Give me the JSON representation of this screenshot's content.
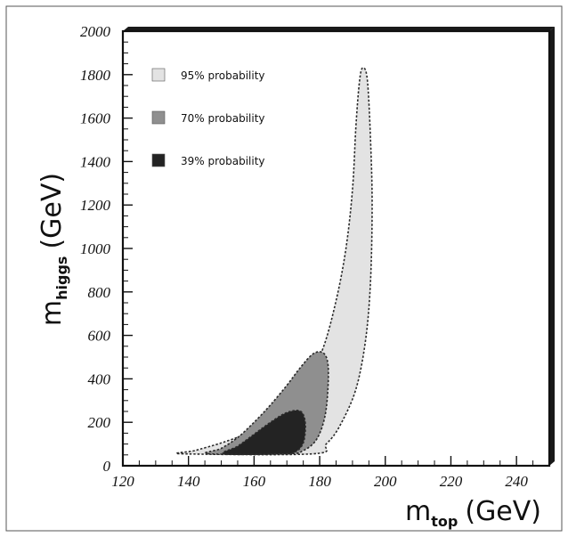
{
  "chart_data": {
    "type": "contour",
    "xlim": [
      120,
      250
    ],
    "ylim": [
      0,
      2000
    ],
    "x_ticks": [
      "120",
      "140",
      "160",
      "180",
      "200",
      "220",
      "240"
    ],
    "y_ticks": [
      "0",
      "200",
      "400",
      "600",
      "800",
      "1000",
      "1200",
      "1400",
      "1600",
      "1800",
      "2000"
    ],
    "xlabel": {
      "main": "m",
      "sub": "top",
      "unit": "(GeV)"
    },
    "ylabel": {
      "main": "m",
      "sub": "higgs",
      "unit": "(GeV)"
    },
    "legend_position": "top-left",
    "grid": false,
    "series": [
      {
        "name": "95% probability",
        "color": "#e3e3e3",
        "points": [
          [
            138.5,
            55
          ],
          [
            142,
            70
          ],
          [
            150,
            105
          ],
          [
            158,
            150
          ],
          [
            165,
            210
          ],
          [
            171,
            285
          ],
          [
            176,
            390
          ],
          [
            181,
            540
          ],
          [
            185,
            760
          ],
          [
            188,
            1000
          ],
          [
            190,
            1270
          ],
          [
            191,
            1550
          ],
          [
            192,
            1750
          ],
          [
            193,
            1830
          ],
          [
            194.5,
            1780
          ],
          [
            195.5,
            1500
          ],
          [
            196,
            1200
          ],
          [
            195.5,
            850
          ],
          [
            194,
            580
          ],
          [
            191,
            350
          ],
          [
            186,
            180
          ],
          [
            182,
            100
          ],
          [
            178,
            55
          ]
        ]
      },
      {
        "name": "70% probability",
        "color": "#8f8f8f",
        "points": [
          [
            146,
            55
          ],
          [
            150,
            80
          ],
          [
            155,
            130
          ],
          [
            160,
            200
          ],
          [
            165,
            280
          ],
          [
            170,
            370
          ],
          [
            174,
            450
          ],
          [
            178,
            515
          ],
          [
            181,
            520
          ],
          [
            182.5,
            470
          ],
          [
            182.5,
            350
          ],
          [
            181.5,
            220
          ],
          [
            179,
            120
          ],
          [
            175,
            70
          ],
          [
            170,
            55
          ]
        ]
      },
      {
        "name": "39% probability",
        "color": "#232323",
        "points": [
          [
            151,
            55
          ],
          [
            155,
            90
          ],
          [
            160,
            145
          ],
          [
            165,
            200
          ],
          [
            170,
            245
          ],
          [
            174,
            252
          ],
          [
            175.5,
            210
          ],
          [
            175.5,
            140
          ],
          [
            174.5,
            90
          ],
          [
            172,
            60
          ],
          [
            168,
            55
          ]
        ]
      }
    ]
  }
}
